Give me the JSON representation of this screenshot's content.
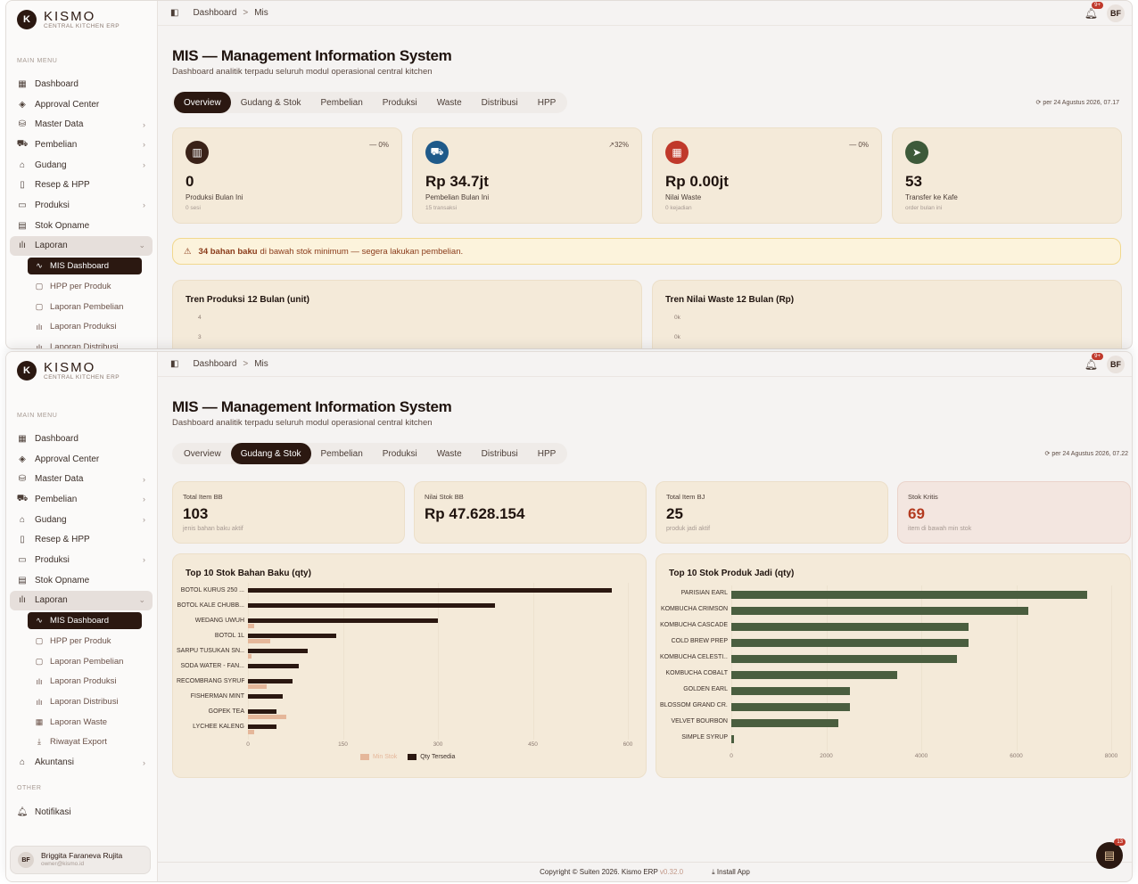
{
  "brand": {
    "name": "KISMO",
    "subtitle": "CENTRAL KITCHEN ERP",
    "badge": "K"
  },
  "sidebar": {
    "main_menu_label": "MAIN MENU",
    "other_label": "OTHER",
    "items": [
      {
        "label": "Dashboard",
        "icon": "grid-icon"
      },
      {
        "label": "Approval Center",
        "icon": "shield-check-icon"
      },
      {
        "label": "Master Data",
        "icon": "database-icon"
      },
      {
        "label": "Pembelian",
        "icon": "cart-icon"
      },
      {
        "label": "Gudang",
        "icon": "warehouse-icon"
      },
      {
        "label": "Resep & HPP",
        "icon": "book-icon"
      },
      {
        "label": "Produksi",
        "icon": "folder-icon"
      },
      {
        "label": "Stok Opname",
        "icon": "clipboard-icon"
      },
      {
        "label": "Laporan",
        "icon": "bar-chart-icon"
      }
    ],
    "sub_items": [
      {
        "label": "MIS Dashboard"
      },
      {
        "label": "HPP per Produk"
      },
      {
        "label": "Laporan Pembelian"
      },
      {
        "label": "Laporan Produksi"
      },
      {
        "label": "Laporan Distribusi"
      },
      {
        "label": "Laporan Waste"
      },
      {
        "label": "Riwayat Export"
      }
    ],
    "akuntansi": "Akuntansi",
    "notifikasi": "Notifikasi",
    "user": {
      "initials": "BF",
      "name": "Briggita Faraneva Rujita",
      "email": "owner@kismo.id"
    }
  },
  "topbar": {
    "crumb1": "Dashboard",
    "sep": ">",
    "crumb2": "Mis",
    "notif_count": "9+",
    "avatar": "BF"
  },
  "page": {
    "title": "MIS — Management Information System",
    "subtitle": "Dashboard analitik terpadu seluruh modul operasional central kitchen"
  },
  "tabs": [
    "Overview",
    "Gudang & Stok",
    "Pembelian",
    "Produksi",
    "Waste",
    "Distribusi",
    "HPP"
  ],
  "shot1": {
    "refresh": "per 24 Agustus 2026, 07.17",
    "kpis": [
      {
        "value": "0",
        "label": "Produksi Bulan Ini",
        "sub": "0 sesi",
        "trend": "— 0%",
        "color": "#3a2218"
      },
      {
        "value": "Rp 34.7jt",
        "label": "Pembelian Bulan Ini",
        "sub": "15 transaksi",
        "trend": "↗32%",
        "color": "#1f5a8a"
      },
      {
        "value": "Rp 0.00jt",
        "label": "Nilai Waste",
        "sub": "0 kejadian",
        "trend": "— 0%",
        "color": "#c0392b"
      },
      {
        "value": "53",
        "label": "Transfer ke Kafe",
        "sub": "order bulan ini",
        "trend": "",
        "color": "#3d5a3a"
      }
    ],
    "alert": {
      "bold": "34 bahan baku",
      "rest": "di bawah stok minimum — segera lakukan pembelian."
    },
    "chart1": {
      "title": "Tren Produksi 12 Bulan (unit)",
      "ticks": [
        "4",
        "3"
      ]
    },
    "chart2": {
      "title": "Tren Nilai Waste 12 Bulan (Rp)",
      "ticks": [
        "0k",
        "0k"
      ]
    }
  },
  "shot2": {
    "refresh": "per 24 Agustus 2026, 07.22",
    "stats": [
      {
        "label": "Total Item BB",
        "value": "103",
        "sub": "jenis bahan baku aktif"
      },
      {
        "label": "Nilai Stok BB",
        "value": "Rp 47.628.154",
        "sub": ""
      },
      {
        "label": "Total Item BJ",
        "value": "25",
        "sub": "produk jadi aktif"
      },
      {
        "label": "Stok Kritis",
        "value": "69",
        "sub": "item di bawah min stok"
      }
    ],
    "fab_count": "13"
  },
  "chart_data": [
    {
      "type": "bar",
      "orientation": "horizontal",
      "title": "Top 10 Stok Bahan Baku (qty)",
      "categories": [
        "BOTOL KURUS 250 ...",
        "BOTOL KALE CHUBB...",
        "WEDANG UWUH",
        "BOTOL 1L",
        "SARPU TUSUKAN SN...",
        "SODA WATER - FAN...",
        "RECOMBRANG SYRUP",
        "FISHERMAN MINT",
        "GOPEK TEA",
        "LYCHEE KALENG"
      ],
      "series": [
        {
          "name": "Min Stok",
          "color": "#e5b79a",
          "values": [
            0,
            0,
            10,
            35,
            5,
            0,
            30,
            0,
            60,
            10
          ]
        },
        {
          "name": "Qty Tersedia",
          "color": "#2b1811",
          "values": [
            575,
            390,
            300,
            140,
            95,
            80,
            70,
            55,
            45,
            45
          ]
        }
      ],
      "xlim": [
        0,
        600
      ],
      "ticks": [
        "0",
        "150",
        "300",
        "450",
        "600"
      ],
      "legend": "bottom"
    },
    {
      "type": "bar",
      "orientation": "horizontal",
      "title": "Top 10 Stok Produk Jadi (qty)",
      "categories": [
        "PARISIAN EARL",
        "KOMBUCHA CRIMSON",
        "KOMBUCHA CASCADE",
        "COLD BREW PREP",
        "KOMBUCHA CELESTI...",
        "KOMBUCHA COBALT",
        "GOLDEN EARL",
        "BLOSSOM GRAND CR...",
        "VELVET BOURBON",
        "SIMPLE SYRUP"
      ],
      "series": [
        {
          "name": "Qty",
          "color": "#4a5e3f",
          "values": [
            7500,
            6250,
            5000,
            5000,
            4750,
            3500,
            2500,
            2500,
            2250,
            50
          ]
        }
      ],
      "xlim": [
        0,
        8000
      ],
      "ticks": [
        "0",
        "2000",
        "4000",
        "6000",
        "8000"
      ]
    }
  ],
  "footer": {
    "copyright": "Copyright © Suiten 2026. Kismo ERP",
    "version": "v0.32.0",
    "install": "Install App"
  }
}
